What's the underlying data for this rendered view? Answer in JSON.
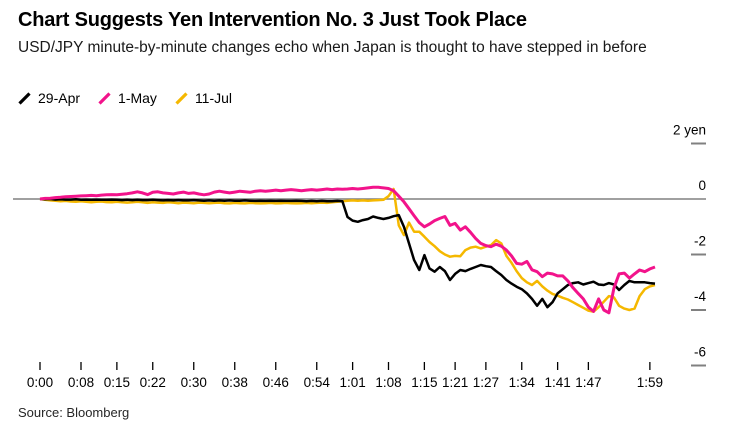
{
  "header": {
    "title": "Chart Suggests Yen Intervention No. 3 Just Took Place",
    "subtitle": "USD/JPY minute-by-minute changes echo when Japan is thought to have stepped in before"
  },
  "source": "Source: Bloomberg",
  "colors": {
    "black_series": "#000000",
    "pink_series": "#F2138B",
    "yellow_series": "#F5B800",
    "zero_line": "#808080",
    "axis_text": "#000000"
  },
  "chart_data": {
    "type": "line",
    "title": "Chart Suggests Yen Intervention No. 3 Just Took Place",
    "subtitle": "USD/JPY minute-by-minute changes echo when Japan is thought to have stepped in before",
    "y_unit": "yen",
    "ylim": [
      -6.9,
      2.4
    ],
    "x_minutes_start": 0,
    "x_minutes_step": 1,
    "x_minutes_end": 120,
    "grid": "zero-line-only",
    "legend_position": "top-left",
    "y_ticks": [
      {
        "value": 2,
        "label": "2 yen"
      },
      {
        "value": 0,
        "label": "0"
      },
      {
        "value": -2,
        "label": "-2"
      },
      {
        "value": -4,
        "label": "-4"
      },
      {
        "value": -6,
        "label": "-6"
      }
    ],
    "x_ticks": [
      {
        "minute": 0,
        "label": "0:00"
      },
      {
        "minute": 8,
        "label": "0:08"
      },
      {
        "minute": 15,
        "label": "0:15"
      },
      {
        "minute": 22,
        "label": "0:22"
      },
      {
        "minute": 30,
        "label": "0:30"
      },
      {
        "minute": 38,
        "label": "0:38"
      },
      {
        "minute": 46,
        "label": "0:46"
      },
      {
        "minute": 54,
        "label": "0:54"
      },
      {
        "minute": 61,
        "label": "1:01"
      },
      {
        "minute": 68,
        "label": "1:08"
      },
      {
        "minute": 75,
        "label": "1:15"
      },
      {
        "minute": 81,
        "label": "1:21"
      },
      {
        "minute": 87,
        "label": "1:27"
      },
      {
        "minute": 94,
        "label": "1:34"
      },
      {
        "minute": 101,
        "label": "1:41"
      },
      {
        "minute": 107,
        "label": "1:47"
      },
      {
        "minute": 119,
        "label": "1:59"
      }
    ],
    "series": [
      {
        "name": "29-Apr",
        "color": "#000000",
        "stroke_width": 2.5,
        "values": [
          0,
          -0.01,
          0,
          -0.02,
          -0.01,
          -0.02,
          -0.02,
          -0.01,
          -0.03,
          -0.02,
          -0.03,
          -0.02,
          -0.03,
          -0.03,
          -0.02,
          -0.03,
          -0.04,
          -0.03,
          -0.04,
          -0.03,
          -0.04,
          -0.04,
          -0.03,
          -0.04,
          -0.05,
          -0.04,
          -0.05,
          -0.04,
          -0.05,
          -0.05,
          -0.04,
          -0.05,
          -0.06,
          -0.05,
          -0.06,
          -0.05,
          -0.06,
          -0.05,
          -0.06,
          -0.06,
          -0.05,
          -0.06,
          -0.07,
          -0.06,
          -0.07,
          -0.06,
          -0.07,
          -0.06,
          -0.07,
          -0.07,
          -0.06,
          -0.07,
          -0.08,
          -0.07,
          -0.08,
          -0.07,
          -0.08,
          -0.08,
          -0.07,
          -0.08,
          -0.65,
          -0.78,
          -0.82,
          -0.76,
          -0.72,
          -0.63,
          -0.68,
          -0.72,
          -0.68,
          -0.62,
          -0.58,
          -1.0,
          -1.6,
          -2.2,
          -2.56,
          -2.02,
          -2.5,
          -2.62,
          -2.45,
          -2.6,
          -2.92,
          -2.7,
          -2.56,
          -2.6,
          -2.52,
          -2.45,
          -2.38,
          -2.42,
          -2.45,
          -2.6,
          -2.74,
          -2.92,
          -3.05,
          -3.16,
          -3.25,
          -3.4,
          -3.6,
          -3.85,
          -3.6,
          -3.9,
          -3.72,
          -3.4,
          -3.25,
          -3.1,
          -3.03,
          -3.0,
          -3.08,
          -3.03,
          -2.98,
          -3.08,
          -3.1,
          -3.03,
          -3.08,
          -3.28,
          -3.1,
          -2.95,
          -3.0,
          -3.0,
          -3.0,
          -3.03,
          -3.05
        ]
      },
      {
        "name": "1-May",
        "color": "#F2138B",
        "stroke_width": 3,
        "values": [
          0,
          0.02,
          0.03,
          0.05,
          0.06,
          0.08,
          0.09,
          0.1,
          0.11,
          0.12,
          0.13,
          0.12,
          0.14,
          0.15,
          0.16,
          0.15,
          0.17,
          0.19,
          0.22,
          0.26,
          0.22,
          0.16,
          0.24,
          0.26,
          0.22,
          0.2,
          0.18,
          0.22,
          0.25,
          0.2,
          0.22,
          0.18,
          0.15,
          0.18,
          0.25,
          0.28,
          0.25,
          0.22,
          0.25,
          0.28,
          0.26,
          0.24,
          0.28,
          0.3,
          0.28,
          0.3,
          0.32,
          0.3,
          0.32,
          0.34,
          0.32,
          0.3,
          0.32,
          0.34,
          0.32,
          0.34,
          0.36,
          0.34,
          0.36,
          0.35,
          0.36,
          0.38,
          0.36,
          0.38,
          0.4,
          0.42,
          0.42,
          0.4,
          0.38,
          0.3,
          0.1,
          -0.1,
          -0.35,
          -0.6,
          -0.85,
          -1.0,
          -0.9,
          -0.78,
          -0.7,
          -0.63,
          -0.95,
          -0.88,
          -1.12,
          -1.0,
          -1.2,
          -1.42,
          -1.6,
          -1.68,
          -1.72,
          -1.63,
          -1.7,
          -1.84,
          -2.05,
          -2.32,
          -2.35,
          -2.25,
          -2.55,
          -2.62,
          -2.8,
          -2.67,
          -2.7,
          -2.77,
          -2.77,
          -2.95,
          -3.2,
          -3.4,
          -3.6,
          -3.9,
          -4.05,
          -3.6,
          -4.0,
          -4.1,
          -3.2,
          -2.7,
          -2.67,
          -2.85,
          -2.7,
          -2.56,
          -2.62,
          -2.52,
          -2.45
        ]
      },
      {
        "name": "11-Jul",
        "color": "#F5B800",
        "stroke_width": 2.5,
        "values": [
          0,
          -0.03,
          -0.05,
          -0.06,
          -0.08,
          -0.07,
          -0.09,
          -0.1,
          -0.08,
          -0.1,
          -0.12,
          -0.1,
          -0.09,
          -0.11,
          -0.12,
          -0.1,
          -0.12,
          -0.13,
          -0.12,
          -0.1,
          -0.12,
          -0.14,
          -0.12,
          -0.13,
          -0.14,
          -0.12,
          -0.13,
          -0.15,
          -0.13,
          -0.14,
          -0.15,
          -0.13,
          -0.14,
          -0.15,
          -0.14,
          -0.13,
          -0.15,
          -0.16,
          -0.14,
          -0.15,
          -0.16,
          -0.14,
          -0.15,
          -0.16,
          -0.15,
          -0.14,
          -0.16,
          -0.15,
          -0.14,
          -0.15,
          -0.16,
          -0.15,
          -0.14,
          -0.15,
          -0.14,
          -0.13,
          -0.14,
          -0.12,
          -0.1,
          -0.08,
          -0.06,
          -0.05,
          -0.06,
          -0.05,
          -0.06,
          -0.05,
          -0.04,
          -0.03,
          0.1,
          0.36,
          -0.95,
          -1.3,
          -0.85,
          -1.18,
          -1.18,
          -1.36,
          -1.55,
          -1.7,
          -1.88,
          -2.0,
          -2.08,
          -2.05,
          -2.06,
          -1.84,
          -1.75,
          -1.72,
          -1.78,
          -1.72,
          -1.66,
          -1.48,
          -1.6,
          -2.05,
          -2.3,
          -2.6,
          -2.85,
          -3.0,
          -3.1,
          -2.95,
          -3.15,
          -3.3,
          -3.42,
          -3.48,
          -3.56,
          -3.62,
          -3.72,
          -3.82,
          -3.92,
          -4.02,
          -4.06,
          -3.9,
          -3.7,
          -3.5,
          -3.55,
          -3.85,
          -3.95,
          -4.0,
          -3.95,
          -3.5,
          -3.25,
          -3.15,
          -3.1
        ]
      }
    ]
  }
}
